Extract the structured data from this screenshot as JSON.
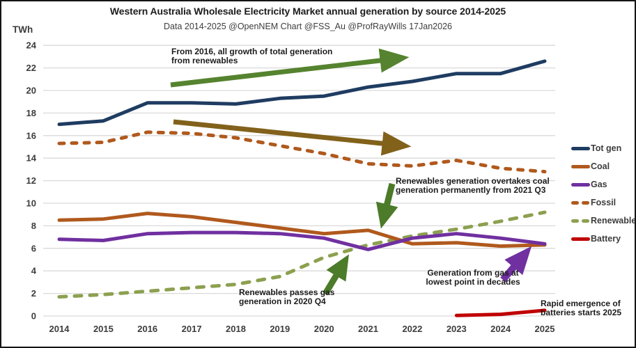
{
  "header": {
    "title": "Western Australia Wholesale Electricity Market annual generation by source 2014-2025",
    "subtitle": "Data 2014-2025 @OpenNEM Chart @FSS_Au @ProfRayWills 17Jan2026"
  },
  "chart_data": {
    "type": "line",
    "title": "Western Australia Wholesale Electricity Market annual generation by source 2014-2025",
    "subtitle": "Data 2014-2025 @OpenNEM Chart @FSS_Au @ProfRayWills 17Jan2026",
    "xlabel": "",
    "ylabel": "TWh",
    "ylim": [
      0,
      24
    ],
    "y_tick_step": 2,
    "y_ticks": [
      0,
      2,
      4,
      6,
      8,
      10,
      12,
      14,
      16,
      18,
      20,
      22,
      24
    ],
    "grid": true,
    "legend_position": "right",
    "x": [
      2014,
      2015,
      2016,
      2017,
      2018,
      2019,
      2020,
      2021,
      2022,
      2023,
      2024,
      2025
    ],
    "series": [
      {
        "name": "Fossil",
        "color": "#b0591d",
        "dash": "dashed",
        "dash_array": "7 11",
        "values": [
          15.3,
          15.4,
          16.3,
          16.2,
          15.8,
          15.1,
          14.4,
          13.5,
          13.3,
          13.8,
          13.1,
          12.8
        ]
      },
      {
        "name": "Renewable",
        "color": "#8ca04f",
        "dash": "dashed",
        "dash_array": "10 12",
        "values": [
          1.7,
          1.9,
          2.2,
          2.5,
          2.8,
          3.5,
          5.2,
          6.3,
          7.1,
          7.7,
          8.4,
          9.2
        ]
      },
      {
        "name": "Coal",
        "color": "#b0591d",
        "dash": "solid",
        "dash_array": null,
        "values": [
          8.5,
          8.6,
          9.1,
          8.8,
          8.3,
          7.8,
          7.3,
          7.6,
          6.4,
          6.5,
          6.2,
          6.3
        ]
      },
      {
        "name": "Gas",
        "color": "#7030a0",
        "dash": "solid",
        "dash_array": null,
        "values": [
          6.8,
          6.7,
          7.3,
          7.4,
          7.4,
          7.3,
          6.9,
          5.9,
          6.9,
          7.3,
          6.9,
          6.4
        ]
      },
      {
        "name": "Tot gen",
        "color": "#1f3c61",
        "dash": "solid",
        "dash_array": null,
        "values": [
          17.0,
          17.3,
          18.9,
          18.9,
          18.8,
          19.3,
          19.5,
          20.3,
          20.8,
          21.5,
          21.5,
          22.6
        ]
      },
      {
        "name": "Battery",
        "color": "#c00000",
        "dash": "solid",
        "dash_array": null,
        "values": [
          null,
          null,
          null,
          null,
          null,
          null,
          null,
          null,
          null,
          0.05,
          0.15,
          0.5
        ]
      }
    ],
    "legend_order": [
      "Tot gen",
      "Coal",
      "Gas",
      "Fossil",
      "Renewable",
      "Battery"
    ],
    "annotations": [
      {
        "id": "growth-renewables",
        "text": "From 2016, all growth of total generation\nfrom renewables",
        "arrow_color": "#55832f"
      },
      {
        "id": "fossil-decline-arrow",
        "text": "",
        "arrow_color": "#82611b"
      },
      {
        "id": "renewables-overtake-coal",
        "text": "Renewables generation overtakes coal\ngeneration permanently from 2021 Q3",
        "arrow_color": "#4c7b29"
      },
      {
        "id": "renewables-pass-gas",
        "text": "Renewables passes gas\ngeneration in 2020 Q4",
        "arrow_color": "#4c7b29"
      },
      {
        "id": "gas-lowest-point",
        "text": "Generation from gas at\nlowest point in decades",
        "arrow_color": "#7030a0"
      },
      {
        "id": "battery-emergence",
        "text": "Rapid emergence of\nbatteries starts 2025",
        "arrow_color": null
      }
    ],
    "colors": {
      "grid": "#d9d9d9",
      "tick_text": "#3d3d3d",
      "annotation_text": "#1c1c1c",
      "frame_border": "#141414"
    }
  }
}
